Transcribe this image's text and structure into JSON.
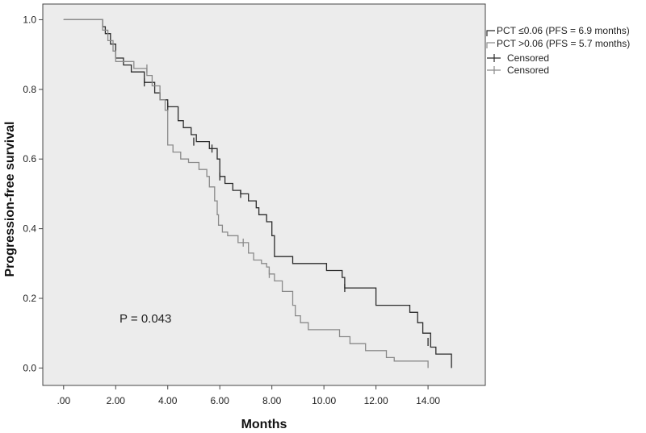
{
  "chart_data": {
    "type": "line",
    "subtype": "kaplan-meier step",
    "xlabel": "Months",
    "ylabel": "Progression-free survival",
    "xlim": [
      -0.8,
      16.2
    ],
    "ylim": [
      -0.05,
      1.045
    ],
    "x_ticks": [
      0,
      2,
      4,
      6,
      8,
      10,
      12,
      14
    ],
    "x_tick_labels": [
      ".00",
      "2.00",
      "4.00",
      "6.00",
      "8.00",
      "10.00",
      "12.00",
      "14.00"
    ],
    "y_ticks": [
      0,
      0.2,
      0.4,
      0.6,
      0.8,
      1.0
    ],
    "y_tick_labels": [
      "0.0",
      "0.2",
      "0.4",
      "0.6",
      "0.8",
      "1.0"
    ],
    "grid": false,
    "annotation": "P = 0.043",
    "legend_position": "right, outside plot",
    "series": [
      {
        "name": "PCT ≤0.06 (PFS = 6.9 months)",
        "color": "#2b2b2b",
        "censored_label": "Censored",
        "steps": [
          [
            0,
            1.0
          ],
          [
            1.5,
            0.98
          ],
          [
            1.6,
            0.96
          ],
          [
            1.8,
            0.93
          ],
          [
            2.0,
            0.89
          ],
          [
            2.3,
            0.87
          ],
          [
            2.6,
            0.85
          ],
          [
            3.1,
            0.82
          ],
          [
            3.5,
            0.79
          ],
          [
            3.7,
            0.77
          ],
          [
            4.0,
            0.75
          ],
          [
            4.4,
            0.71
          ],
          [
            4.6,
            0.69
          ],
          [
            4.9,
            0.67
          ],
          [
            5.1,
            0.65
          ],
          [
            5.6,
            0.63
          ],
          [
            5.9,
            0.6
          ],
          [
            6.0,
            0.55
          ],
          [
            6.2,
            0.53
          ],
          [
            6.5,
            0.51
          ],
          [
            6.8,
            0.5
          ],
          [
            7.1,
            0.48
          ],
          [
            7.4,
            0.46
          ],
          [
            7.5,
            0.44
          ],
          [
            7.8,
            0.42
          ],
          [
            8.0,
            0.38
          ],
          [
            8.1,
            0.32
          ],
          [
            8.8,
            0.3
          ],
          [
            10.1,
            0.28
          ],
          [
            10.7,
            0.26
          ],
          [
            10.8,
            0.23
          ],
          [
            12.0,
            0.18
          ],
          [
            13.3,
            0.16
          ],
          [
            13.6,
            0.13
          ],
          [
            13.8,
            0.1
          ],
          [
            14.1,
            0.06
          ],
          [
            14.3,
            0.04
          ],
          [
            14.9,
            0.0
          ]
        ],
        "end_x": 14.9,
        "censored": [
          [
            3.1,
            0.82
          ],
          [
            4.0,
            0.75
          ],
          [
            5.0,
            0.65
          ],
          [
            5.7,
            0.63
          ],
          [
            6.0,
            0.55
          ],
          [
            6.8,
            0.5
          ],
          [
            10.8,
            0.23
          ],
          [
            14.0,
            0.075
          ]
        ]
      },
      {
        "name": "PCT >0.06 (PFS = 5.7 months)",
        "color": "#8a8a8a",
        "censored_label": "Censored",
        "steps": [
          [
            0,
            1.0
          ],
          [
            1.5,
            0.97
          ],
          [
            1.7,
            0.94
          ],
          [
            1.9,
            0.91
          ],
          [
            2.0,
            0.88
          ],
          [
            2.7,
            0.86
          ],
          [
            3.2,
            0.84
          ],
          [
            3.4,
            0.81
          ],
          [
            3.7,
            0.77
          ],
          [
            3.9,
            0.74
          ],
          [
            4.0,
            0.64
          ],
          [
            4.2,
            0.62
          ],
          [
            4.5,
            0.6
          ],
          [
            4.8,
            0.59
          ],
          [
            5.2,
            0.57
          ],
          [
            5.5,
            0.55
          ],
          [
            5.6,
            0.52
          ],
          [
            5.8,
            0.48
          ],
          [
            5.9,
            0.44
          ],
          [
            5.95,
            0.41
          ],
          [
            6.1,
            0.39
          ],
          [
            6.3,
            0.38
          ],
          [
            6.7,
            0.36
          ],
          [
            7.1,
            0.33
          ],
          [
            7.3,
            0.31
          ],
          [
            7.6,
            0.3
          ],
          [
            7.8,
            0.29
          ],
          [
            7.9,
            0.27
          ],
          [
            8.1,
            0.25
          ],
          [
            8.4,
            0.22
          ],
          [
            8.8,
            0.18
          ],
          [
            8.9,
            0.15
          ],
          [
            9.1,
            0.13
          ],
          [
            9.4,
            0.11
          ],
          [
            10.6,
            0.09
          ],
          [
            11.0,
            0.07
          ],
          [
            11.6,
            0.05
          ],
          [
            12.4,
            0.03
          ],
          [
            12.7,
            0.02
          ],
          [
            14.0,
            0.0
          ]
        ],
        "end_x": 14.0,
        "censored": [
          [
            3.2,
            0.86
          ],
          [
            6.9,
            0.36
          ],
          [
            7.9,
            0.27
          ]
        ]
      }
    ]
  }
}
